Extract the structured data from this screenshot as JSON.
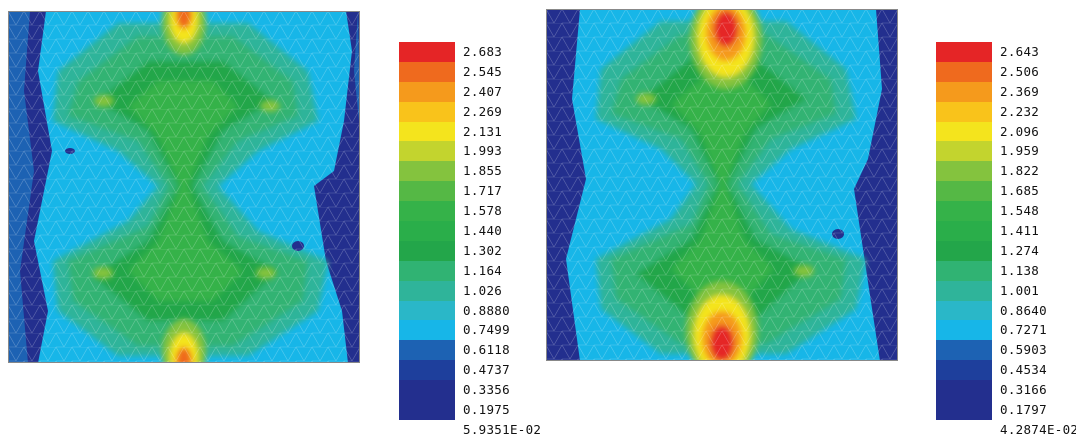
{
  "colors": [
    "#232f8e",
    "#1e3f9c",
    "#1d62b3",
    "#17b6e8",
    "#2ab7c8",
    "#2fb49a",
    "#30b373",
    "#23a64a",
    "#2aae4a",
    "#35b249",
    "#55b845",
    "#84c33e",
    "#c3d42e",
    "#f4e41d",
    "#f9c31b",
    "#f59a1c",
    "#ef6a1e",
    "#e52526"
  ],
  "plots": [
    {
      "legend": [
        "2.683",
        "2.545",
        "2.407",
        "2.269",
        "2.131",
        "1.993",
        "1.855",
        "1.717",
        "1.578",
        "1.440",
        "1.302",
        "1.164",
        "1.026",
        "0.8880",
        "0.7499",
        "0.6118",
        "0.4737",
        "0.3356",
        "0.1975",
        "5.9351E-02"
      ]
    },
    {
      "legend": [
        "2.643",
        "2.506",
        "2.369",
        "2.232",
        "2.096",
        "1.959",
        "1.822",
        "1.685",
        "1.548",
        "1.411",
        "1.274",
        "1.138",
        "1.001",
        "0.8640",
        "0.7271",
        "0.5903",
        "0.4534",
        "0.3166",
        "0.1797",
        "4.2874E-02"
      ]
    }
  ]
}
